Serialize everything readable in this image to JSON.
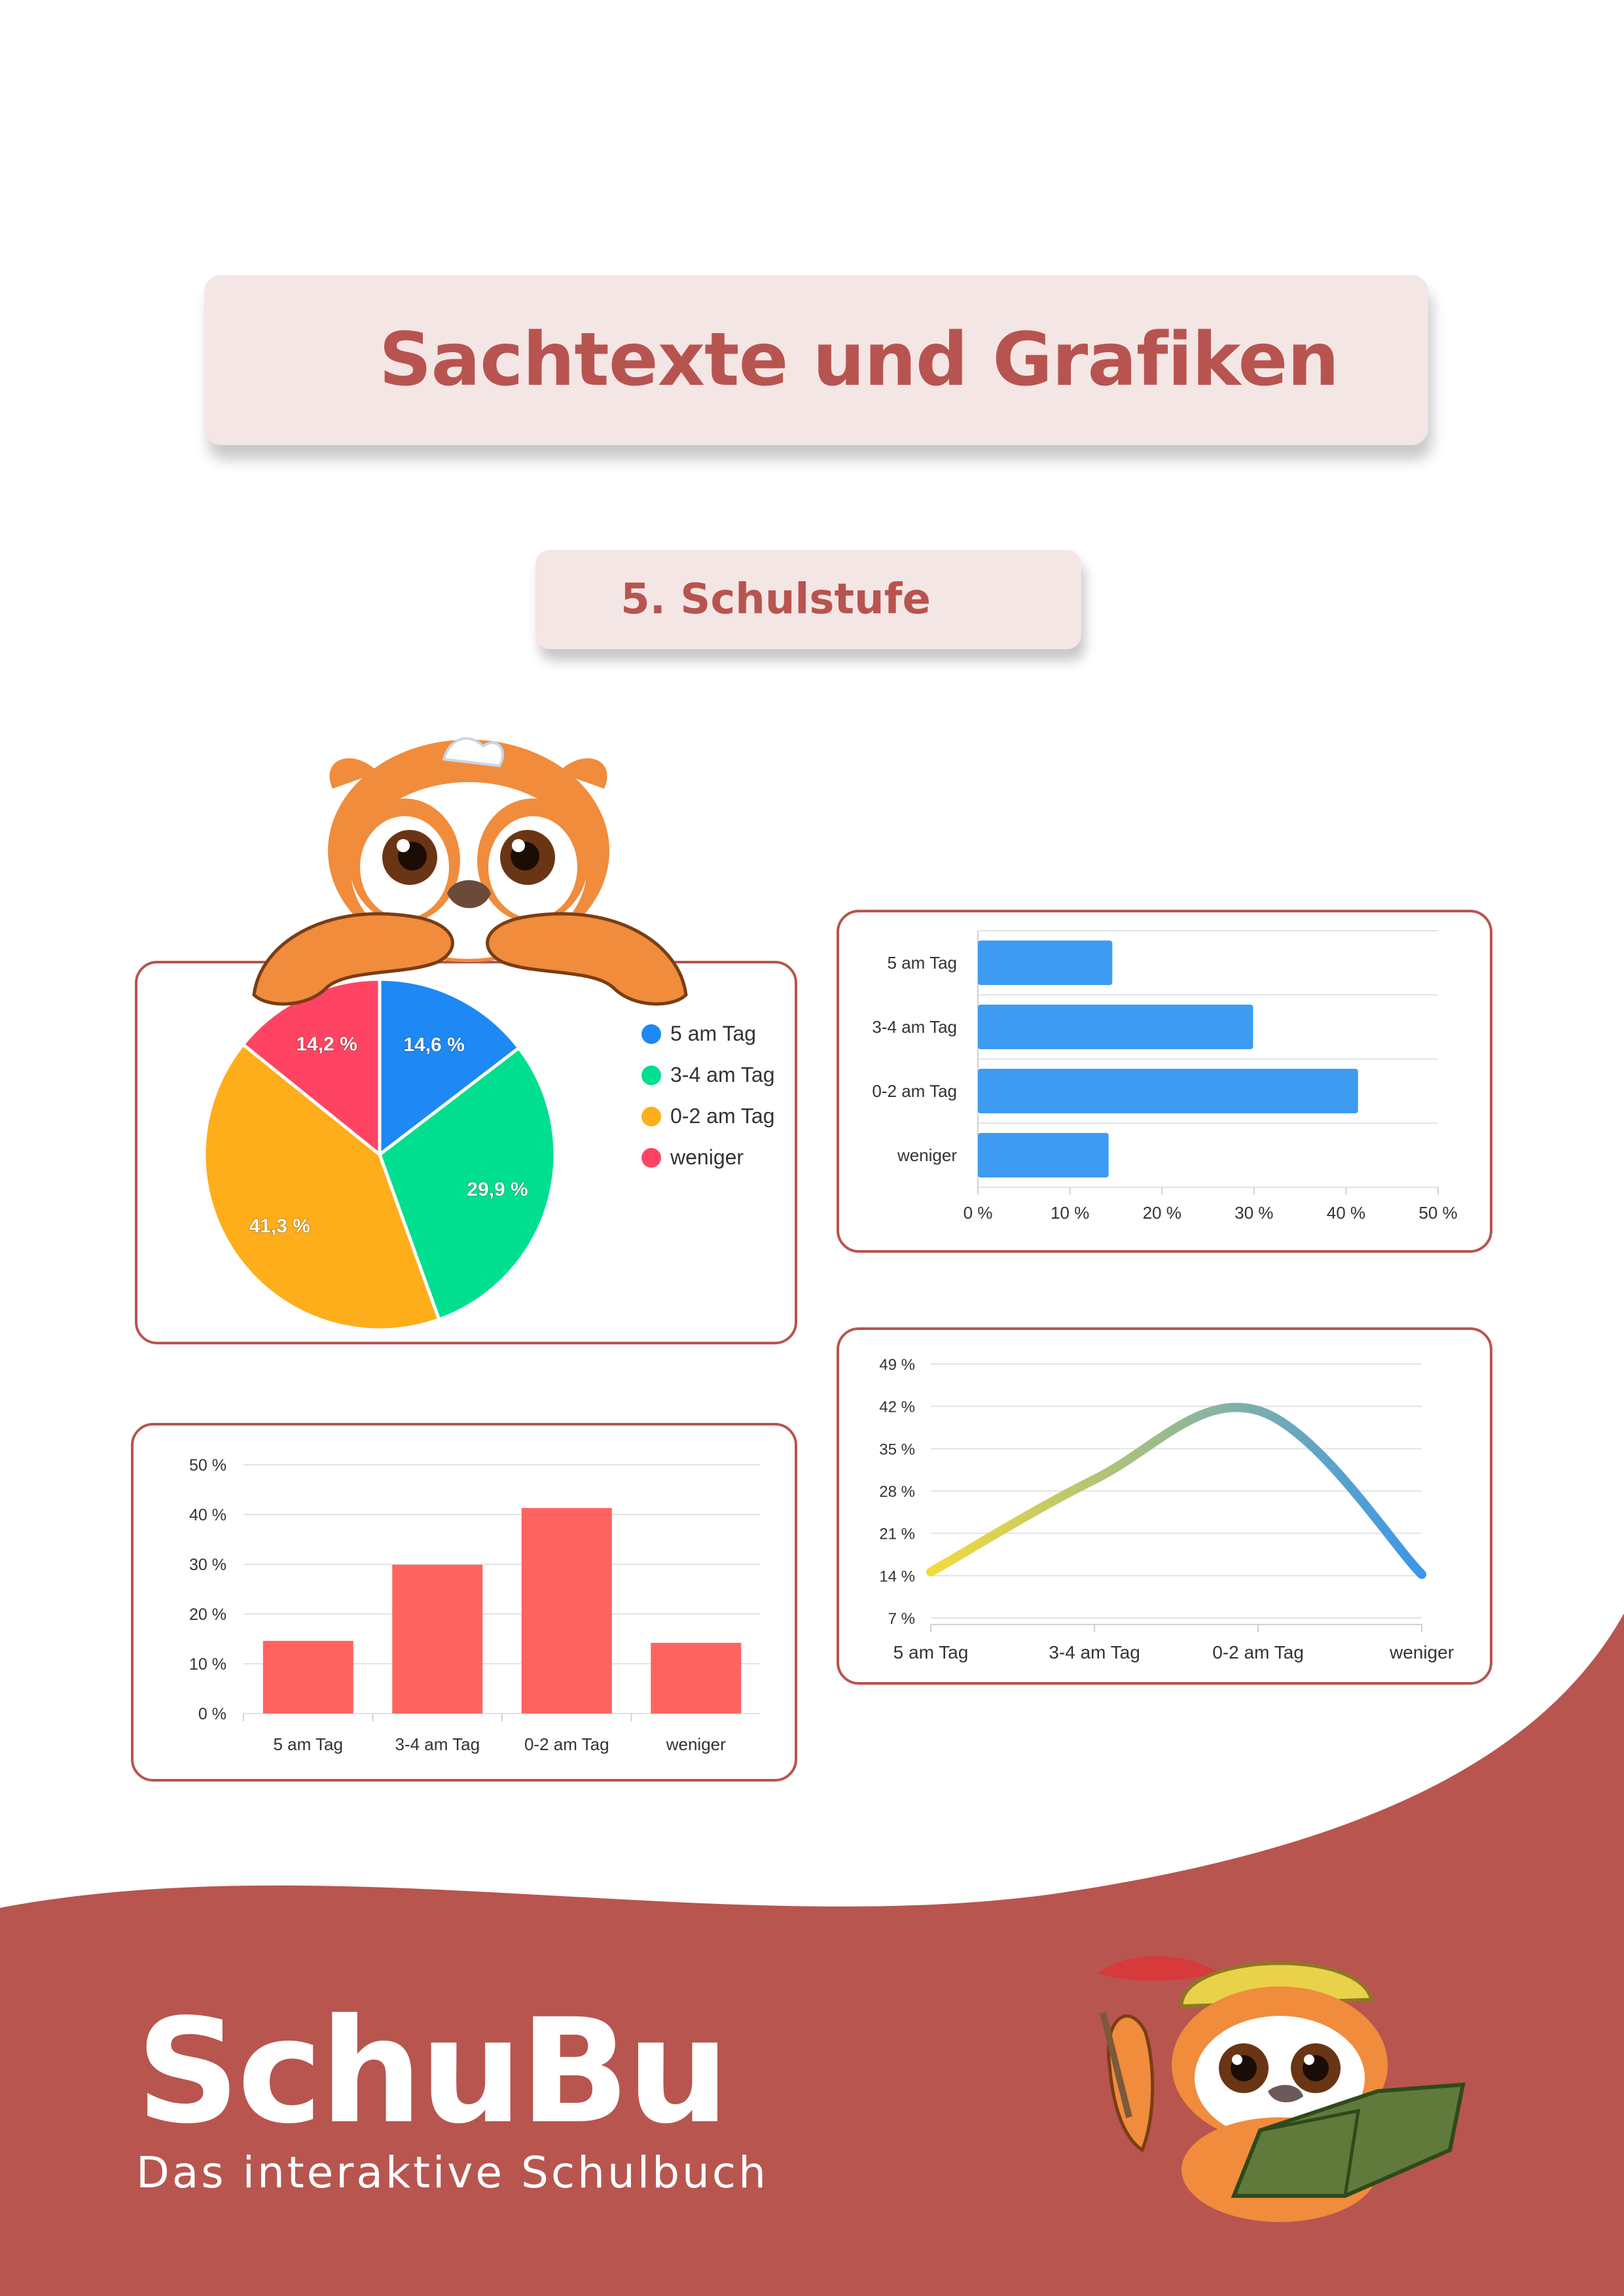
{
  "header": {
    "title": "Sachtexte und Grafiken",
    "subtitle": "5. Schulstufe"
  },
  "brand": {
    "logo": "SchuBu",
    "tagline": "Das interaktive Schulbuch",
    "accent_color": "#b8544f",
    "box_color": "#f4e6e5"
  },
  "chart_data": [
    {
      "type": "pie",
      "categories": [
        "5 am Tag",
        "3-4 am Tag",
        "0-2 am Tag",
        "weniger"
      ],
      "values": [
        14.6,
        29.9,
        41.3,
        14.2
      ],
      "labels": [
        "14,6 %",
        "29,9 %",
        "41,3 %",
        "14,2 %"
      ],
      "colors": [
        "#1e88f5",
        "#00df8f",
        "#fdae1a",
        "#ff4463"
      ],
      "legend": "right"
    },
    {
      "type": "bar",
      "orientation": "horizontal",
      "categories": [
        "5 am Tag",
        "3-4 am Tag",
        "0-2 am Tag",
        "weniger"
      ],
      "values": [
        14.6,
        29.9,
        41.3,
        14.2
      ],
      "xlim": [
        0,
        50
      ],
      "ticks": [
        "0 %",
        "10 %",
        "20 %",
        "30 %",
        "40 %",
        "50 %"
      ],
      "color": "#3d9bf2",
      "grid": true
    },
    {
      "type": "bar",
      "orientation": "vertical",
      "categories": [
        "5 am Tag",
        "3-4 am Tag",
        "0-2 am Tag",
        "weniger"
      ],
      "values": [
        14.6,
        29.9,
        41.3,
        14.2
      ],
      "ylim": [
        0,
        50
      ],
      "ticks": [
        "0 %",
        "10 %",
        "20 %",
        "30 %",
        "40 %",
        "50 %"
      ],
      "color": "#ff6360",
      "grid": true
    },
    {
      "type": "line",
      "categories": [
        "5 am Tag",
        "3-4 am Tag",
        "0-2 am Tag",
        "weniger"
      ],
      "values": [
        14.6,
        29.9,
        41.3,
        14.2
      ],
      "ylim": [
        7,
        49
      ],
      "ticks": [
        "7 %",
        "14 %",
        "21 %",
        "28 %",
        "35 %",
        "42 %",
        "49 %"
      ],
      "gradient": [
        "#f2dc3a",
        "#3a96ea"
      ],
      "grid": true
    }
  ]
}
